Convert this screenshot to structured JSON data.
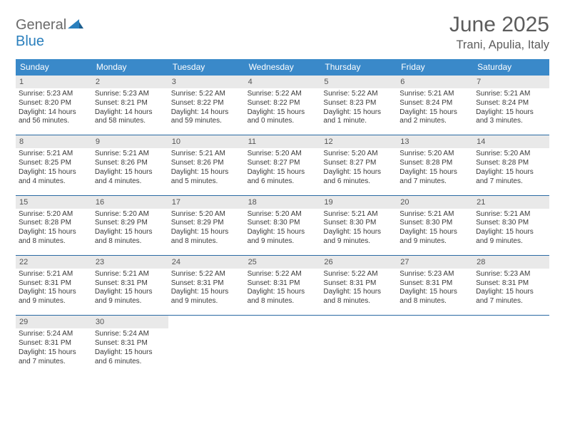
{
  "logo": {
    "part1": "General",
    "part2": "Blue"
  },
  "title": "June 2025",
  "location": "Trani, Apulia, Italy",
  "colors": {
    "header_bg": "#3a89c9",
    "week_border": "#2a6aa3",
    "daynum_bg": "#e9e9e9",
    "text": "#333333",
    "title_text": "#5c5c5c"
  },
  "daysOfWeek": [
    "Sunday",
    "Monday",
    "Tuesday",
    "Wednesday",
    "Thursday",
    "Friday",
    "Saturday"
  ],
  "weeks": [
    [
      {
        "n": "1",
        "sr": "Sunrise: 5:23 AM",
        "ss": "Sunset: 8:20 PM",
        "d1": "Daylight: 14 hours",
        "d2": "and 56 minutes."
      },
      {
        "n": "2",
        "sr": "Sunrise: 5:23 AM",
        "ss": "Sunset: 8:21 PM",
        "d1": "Daylight: 14 hours",
        "d2": "and 58 minutes."
      },
      {
        "n": "3",
        "sr": "Sunrise: 5:22 AM",
        "ss": "Sunset: 8:22 PM",
        "d1": "Daylight: 14 hours",
        "d2": "and 59 minutes."
      },
      {
        "n": "4",
        "sr": "Sunrise: 5:22 AM",
        "ss": "Sunset: 8:22 PM",
        "d1": "Daylight: 15 hours",
        "d2": "and 0 minutes."
      },
      {
        "n": "5",
        "sr": "Sunrise: 5:22 AM",
        "ss": "Sunset: 8:23 PM",
        "d1": "Daylight: 15 hours",
        "d2": "and 1 minute."
      },
      {
        "n": "6",
        "sr": "Sunrise: 5:21 AM",
        "ss": "Sunset: 8:24 PM",
        "d1": "Daylight: 15 hours",
        "d2": "and 2 minutes."
      },
      {
        "n": "7",
        "sr": "Sunrise: 5:21 AM",
        "ss": "Sunset: 8:24 PM",
        "d1": "Daylight: 15 hours",
        "d2": "and 3 minutes."
      }
    ],
    [
      {
        "n": "8",
        "sr": "Sunrise: 5:21 AM",
        "ss": "Sunset: 8:25 PM",
        "d1": "Daylight: 15 hours",
        "d2": "and 4 minutes."
      },
      {
        "n": "9",
        "sr": "Sunrise: 5:21 AM",
        "ss": "Sunset: 8:26 PM",
        "d1": "Daylight: 15 hours",
        "d2": "and 4 minutes."
      },
      {
        "n": "10",
        "sr": "Sunrise: 5:21 AM",
        "ss": "Sunset: 8:26 PM",
        "d1": "Daylight: 15 hours",
        "d2": "and 5 minutes."
      },
      {
        "n": "11",
        "sr": "Sunrise: 5:20 AM",
        "ss": "Sunset: 8:27 PM",
        "d1": "Daylight: 15 hours",
        "d2": "and 6 minutes."
      },
      {
        "n": "12",
        "sr": "Sunrise: 5:20 AM",
        "ss": "Sunset: 8:27 PM",
        "d1": "Daylight: 15 hours",
        "d2": "and 6 minutes."
      },
      {
        "n": "13",
        "sr": "Sunrise: 5:20 AM",
        "ss": "Sunset: 8:28 PM",
        "d1": "Daylight: 15 hours",
        "d2": "and 7 minutes."
      },
      {
        "n": "14",
        "sr": "Sunrise: 5:20 AM",
        "ss": "Sunset: 8:28 PM",
        "d1": "Daylight: 15 hours",
        "d2": "and 7 minutes."
      }
    ],
    [
      {
        "n": "15",
        "sr": "Sunrise: 5:20 AM",
        "ss": "Sunset: 8:28 PM",
        "d1": "Daylight: 15 hours",
        "d2": "and 8 minutes."
      },
      {
        "n": "16",
        "sr": "Sunrise: 5:20 AM",
        "ss": "Sunset: 8:29 PM",
        "d1": "Daylight: 15 hours",
        "d2": "and 8 minutes."
      },
      {
        "n": "17",
        "sr": "Sunrise: 5:20 AM",
        "ss": "Sunset: 8:29 PM",
        "d1": "Daylight: 15 hours",
        "d2": "and 8 minutes."
      },
      {
        "n": "18",
        "sr": "Sunrise: 5:20 AM",
        "ss": "Sunset: 8:30 PM",
        "d1": "Daylight: 15 hours",
        "d2": "and 9 minutes."
      },
      {
        "n": "19",
        "sr": "Sunrise: 5:21 AM",
        "ss": "Sunset: 8:30 PM",
        "d1": "Daylight: 15 hours",
        "d2": "and 9 minutes."
      },
      {
        "n": "20",
        "sr": "Sunrise: 5:21 AM",
        "ss": "Sunset: 8:30 PM",
        "d1": "Daylight: 15 hours",
        "d2": "and 9 minutes."
      },
      {
        "n": "21",
        "sr": "Sunrise: 5:21 AM",
        "ss": "Sunset: 8:30 PM",
        "d1": "Daylight: 15 hours",
        "d2": "and 9 minutes."
      }
    ],
    [
      {
        "n": "22",
        "sr": "Sunrise: 5:21 AM",
        "ss": "Sunset: 8:31 PM",
        "d1": "Daylight: 15 hours",
        "d2": "and 9 minutes."
      },
      {
        "n": "23",
        "sr": "Sunrise: 5:21 AM",
        "ss": "Sunset: 8:31 PM",
        "d1": "Daylight: 15 hours",
        "d2": "and 9 minutes."
      },
      {
        "n": "24",
        "sr": "Sunrise: 5:22 AM",
        "ss": "Sunset: 8:31 PM",
        "d1": "Daylight: 15 hours",
        "d2": "and 9 minutes."
      },
      {
        "n": "25",
        "sr": "Sunrise: 5:22 AM",
        "ss": "Sunset: 8:31 PM",
        "d1": "Daylight: 15 hours",
        "d2": "and 8 minutes."
      },
      {
        "n": "26",
        "sr": "Sunrise: 5:22 AM",
        "ss": "Sunset: 8:31 PM",
        "d1": "Daylight: 15 hours",
        "d2": "and 8 minutes."
      },
      {
        "n": "27",
        "sr": "Sunrise: 5:23 AM",
        "ss": "Sunset: 8:31 PM",
        "d1": "Daylight: 15 hours",
        "d2": "and 8 minutes."
      },
      {
        "n": "28",
        "sr": "Sunrise: 5:23 AM",
        "ss": "Sunset: 8:31 PM",
        "d1": "Daylight: 15 hours",
        "d2": "and 7 minutes."
      }
    ],
    [
      {
        "n": "29",
        "sr": "Sunrise: 5:24 AM",
        "ss": "Sunset: 8:31 PM",
        "d1": "Daylight: 15 hours",
        "d2": "and 7 minutes."
      },
      {
        "n": "30",
        "sr": "Sunrise: 5:24 AM",
        "ss": "Sunset: 8:31 PM",
        "d1": "Daylight: 15 hours",
        "d2": "and 6 minutes."
      },
      null,
      null,
      null,
      null,
      null
    ]
  ]
}
